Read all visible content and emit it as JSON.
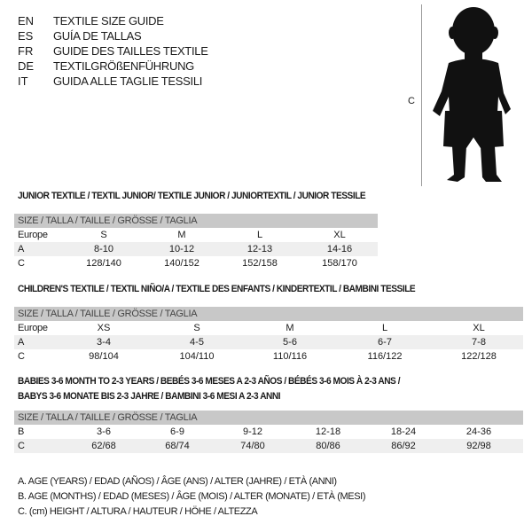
{
  "languages": [
    {
      "code": "EN",
      "text": "TEXTILE SIZE GUIDE"
    },
    {
      "code": "ES",
      "text": "GUÍA DE TALLAS"
    },
    {
      "code": "FR",
      "text": "GUIDE DES TAILLES TEXTILE"
    },
    {
      "code": "DE",
      "text": "TEXTILGRÖßENFÜHRUNG"
    },
    {
      "code": "IT",
      "text": "GUIDA ALLE TAGLIE TESSILI"
    }
  ],
  "figure": {
    "label": "C",
    "icon": "child-silhouette"
  },
  "junior": {
    "title": "JUNIOR TEXTILE / TEXTIL JUNIOR/ TEXTILE JUNIOR / JUNIORTEXTIL / JUNIOR TESSILE",
    "header": "SIZE / TALLA / TAILLE / GRÖSSE / TAGLIA",
    "rows": [
      {
        "label": "Europe",
        "values": [
          "S",
          "M",
          "L",
          "XL"
        ]
      },
      {
        "label": "A",
        "values": [
          "8-10",
          "10-12",
          "12-13",
          "14-16"
        ]
      },
      {
        "label": "C",
        "values": [
          "128/140",
          "140/152",
          "152/158",
          "158/170"
        ]
      }
    ]
  },
  "children": {
    "title": "CHILDREN'S TEXTILE / TEXTIL NIÑO/A / TEXTILE DES ENFANTS / KINDERTEXTIL / BAMBINI TESSILE",
    "header": "SIZE / TALLA / TAILLE / GRÖSSE / TAGLIA",
    "rows": [
      {
        "label": "Europe",
        "values": [
          "XS",
          "S",
          "M",
          "L",
          "XL"
        ]
      },
      {
        "label": "A",
        "values": [
          "3-4",
          "4-5",
          "5-6",
          "6-7",
          "7-8"
        ]
      },
      {
        "label": "C",
        "values": [
          "98/104",
          "104/110",
          "110/116",
          "116/122",
          "122/128"
        ]
      }
    ]
  },
  "babies": {
    "title_line1": "BABIES 3-6 MONTH TO 2-3 YEARS / BEBÉS 3-6 MESES A 2-3 AÑOS / BÉBÉS 3-6 MOIS À 2-3 ANS /",
    "title_line2": "BABYS 3-6 MONATE BIS 2-3 JAHRE / BAMBINI 3-6 MESI A 2-3 ANNI",
    "header": "SIZE / TALLA / TAILLE / GRÖSSE / TAGLIA",
    "rows": [
      {
        "label": "B",
        "values": [
          "3-6",
          "6-9",
          "9-12",
          "12-18",
          "18-24",
          "24-36"
        ]
      },
      {
        "label": "C",
        "values": [
          "62/68",
          "68/74",
          "74/80",
          "80/86",
          "86/92",
          "92/98"
        ]
      }
    ]
  },
  "legend": [
    "A. AGE (YEARS) / EDAD (AÑOS) / ÂGE (ANS) / ALTER (JAHRE) / ETÀ (ANNI)",
    "B. AGE (MONTHS) / EDAD (MESES) / ÂGE (MOIS) / ALTER (MONATE) / ETÀ (MESI)",
    "C. (cm) HEIGHT / ALTURA / HAUTEUR / HÖHE / ALTEZZA"
  ]
}
